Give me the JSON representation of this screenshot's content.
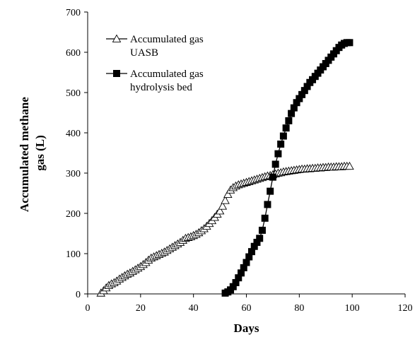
{
  "chart_data": {
    "type": "line",
    "title": "",
    "xlabel": "Days",
    "ylabel_lines": [
      "Accumulated methane",
      "gas (L)"
    ],
    "xlim": [
      0,
      120
    ],
    "ylim": [
      0,
      700
    ],
    "x_ticks": [
      0,
      20,
      40,
      60,
      80,
      100,
      120
    ],
    "y_ticks": [
      0,
      100,
      200,
      300,
      400,
      500,
      600,
      700
    ],
    "grid": false,
    "legend_position": "top-left",
    "series": [
      {
        "name_lines": [
          "Accumulated gas",
          "UASB"
        ],
        "marker": "open-triangle",
        "color": "#000000",
        "x": [
          5,
          6,
          7,
          8,
          9,
          10,
          11,
          12,
          13,
          14,
          15,
          16,
          17,
          18,
          19,
          20,
          21,
          22,
          23,
          24,
          25,
          26,
          27,
          28,
          29,
          30,
          31,
          32,
          33,
          34,
          35,
          36,
          37,
          38,
          39,
          40,
          41,
          42,
          43,
          44,
          45,
          46,
          47,
          48,
          49,
          50,
          51,
          52,
          53,
          54,
          55,
          56,
          57,
          58,
          59,
          60,
          61,
          62,
          63,
          64,
          65,
          66,
          67,
          68,
          69,
          70,
          71,
          72,
          73,
          74,
          75,
          76,
          77,
          78,
          79,
          80,
          81,
          82,
          83,
          84,
          85,
          86,
          87,
          88,
          89,
          90,
          91,
          92,
          93,
          94,
          95,
          96,
          97,
          98,
          99
        ],
        "y": [
          2,
          8,
          15,
          21,
          25,
          28,
          32,
          37,
          41,
          45,
          49,
          52,
          56,
          60,
          64,
          68,
          73,
          78,
          84,
          89,
          92,
          95,
          98,
          101,
          104,
          108,
          112,
          116,
          120,
          124,
          128,
          133,
          138,
          140,
          142,
          145,
          148,
          152,
          157,
          162,
          168,
          175,
          182,
          190,
          198,
          206,
          218,
          232,
          247,
          258,
          264,
          268,
          271,
          273,
          275,
          277,
          279,
          281,
          283,
          285,
          287,
          289,
          291,
          293,
          294,
          296,
          298,
          300,
          301,
          303,
          304,
          305,
          306,
          307,
          308,
          309,
          310,
          310,
          311,
          311,
          312,
          312,
          313,
          313,
          314,
          314,
          315,
          315,
          315,
          316,
          316,
          316,
          317,
          317,
          317
        ]
      },
      {
        "name_lines": [
          "Accumulated gas",
          "hydrolysis bed"
        ],
        "marker": "filled-square",
        "color": "#000000",
        "x": [
          52,
          53,
          54,
          55,
          56,
          57,
          58,
          59,
          60,
          61,
          62,
          63,
          64,
          65,
          66,
          67,
          68,
          69,
          70,
          71,
          72,
          73,
          74,
          75,
          76,
          77,
          78,
          79,
          80,
          81,
          82,
          83,
          84,
          85,
          86,
          87,
          88,
          89,
          90,
          91,
          92,
          93,
          94,
          95,
          96,
          97,
          98,
          99
        ],
        "y": [
          2,
          5,
          10,
          18,
          28,
          40,
          52,
          65,
          78,
          92,
          105,
          118,
          128,
          138,
          158,
          188,
          222,
          255,
          290,
          322,
          348,
          372,
          392,
          412,
          430,
          448,
          462,
          475,
          485,
          495,
          505,
          515,
          525,
          532,
          540,
          548,
          556,
          564,
          572,
          580,
          588,
          596,
          604,
          612,
          618,
          622,
          624,
          624
        ]
      }
    ]
  }
}
